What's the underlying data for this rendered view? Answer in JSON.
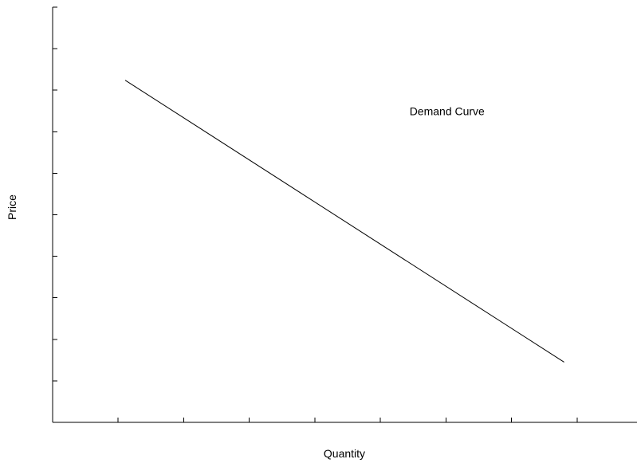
{
  "chart_data": {
    "type": "line",
    "title": "",
    "xlabel": "Quantity",
    "ylabel": "Price",
    "xlim": [
      0,
      10
    ],
    "ylim": [
      0,
      10
    ],
    "x_tick_count": 9,
    "y_tick_count": 10,
    "grid": false,
    "series": [
      {
        "points": [
          [
            1.23,
            8.24
          ],
          [
            8.67,
            1.45
          ]
        ]
      }
    ],
    "annotations": [
      {
        "text": "Demand Curve",
        "x": 6.05,
        "y": 7.5
      }
    ],
    "colors": {
      "line": "#000000",
      "text": "#000000"
    }
  }
}
